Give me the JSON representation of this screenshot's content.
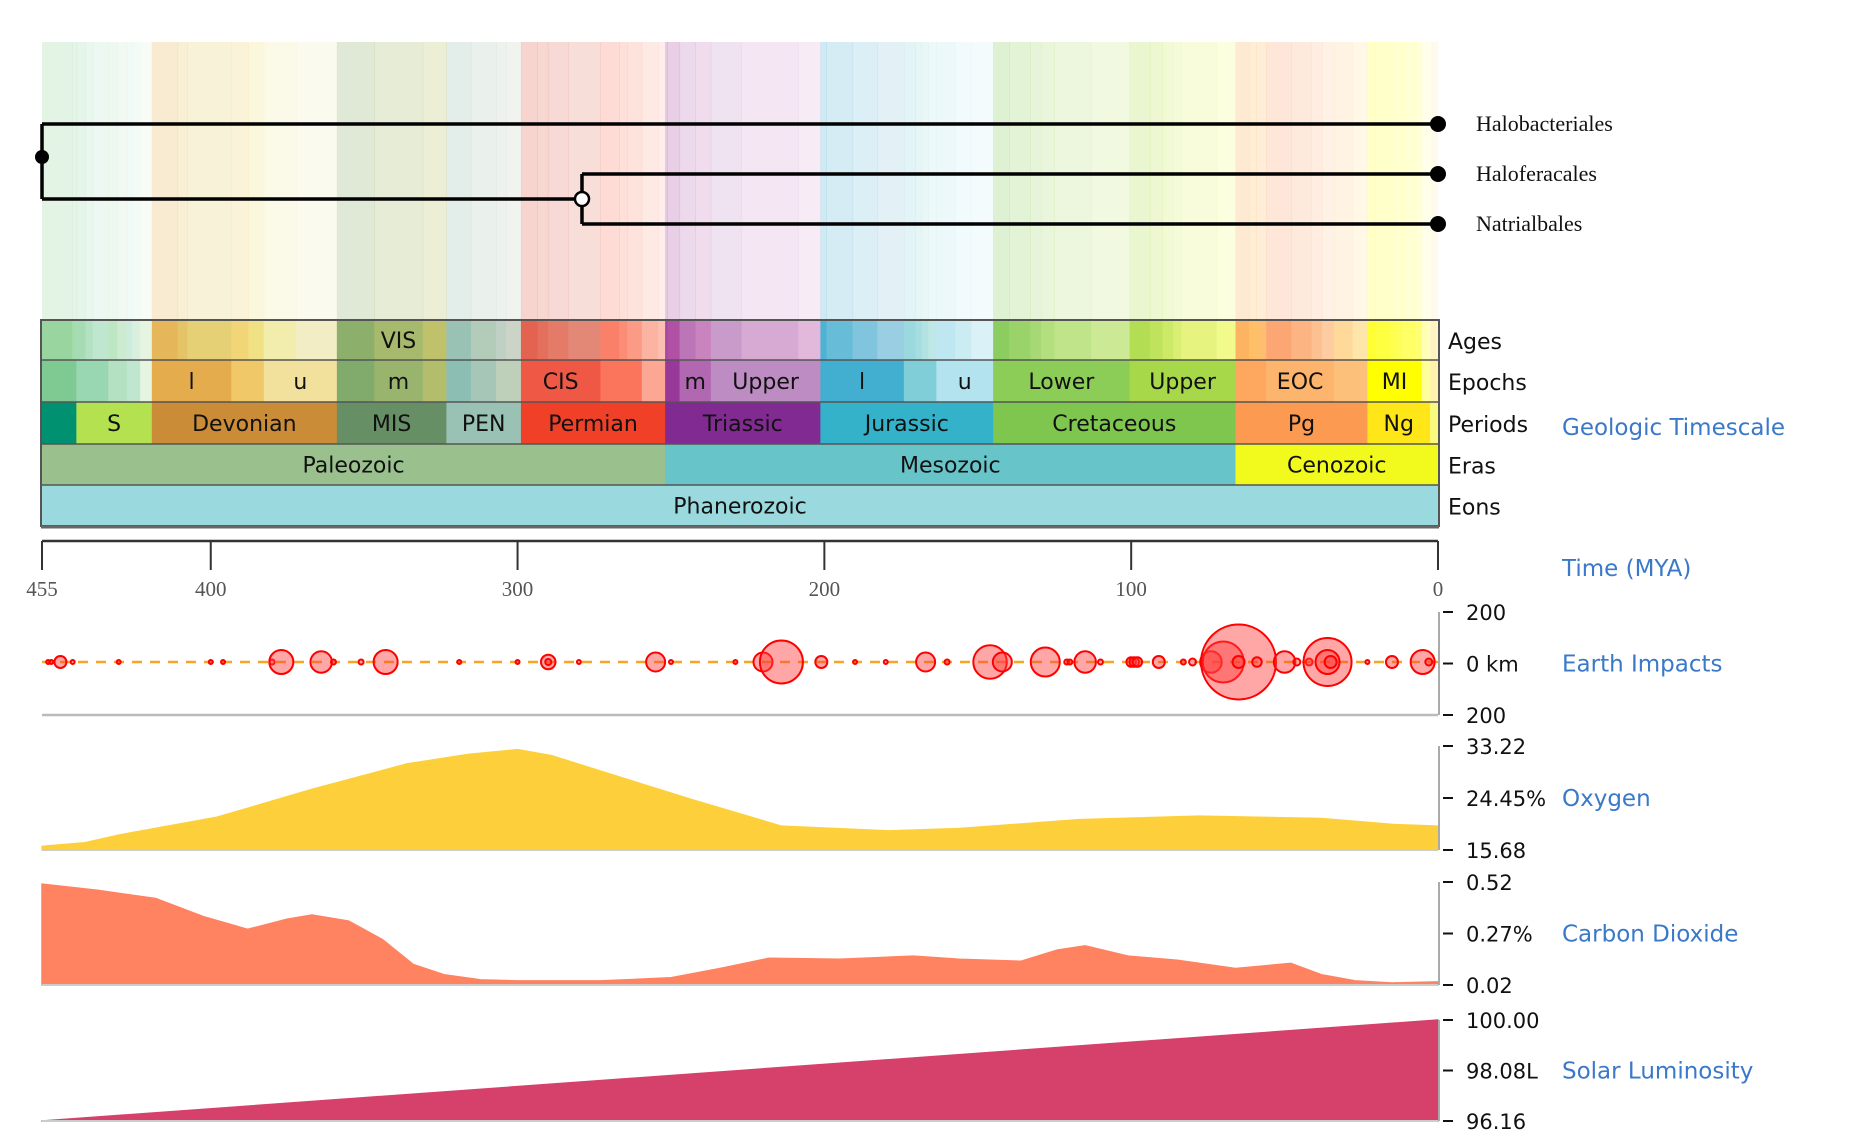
{
  "tree": {
    "leaves": [
      "Halobacteriales",
      "Haloferacales",
      "Natrialbales"
    ],
    "root_time_mya": 455,
    "internal_node_time_mya": 279
  },
  "timescale": {
    "title": "Geologic Timescale",
    "row_labels": [
      "Ages",
      "Epochs",
      "Periods",
      "Eras",
      "Eons"
    ],
    "ages": [
      {
        "s": 455,
        "e": 445.2,
        "c": "#99d69f",
        "l": ""
      },
      {
        "s": 445.2,
        "e": 443.8,
        "c": "#a6dbab",
        "l": ""
      },
      {
        "s": 443.8,
        "e": 440.8,
        "c": "#a6dcb5",
        "l": ""
      },
      {
        "s": 440.8,
        "e": 438.5,
        "c": "#b3e1c2",
        "l": ""
      },
      {
        "s": 438.5,
        "e": 433.4,
        "c": "#bfe6cf",
        "l": ""
      },
      {
        "s": 433.4,
        "e": 430.5,
        "c": "#bfe6c3",
        "l": ""
      },
      {
        "s": 430.5,
        "e": 427.4,
        "c": "#ccebd1",
        "l": ""
      },
      {
        "s": 427.4,
        "e": 425.6,
        "c": "#ccecdd",
        "l": ""
      },
      {
        "s": 425.6,
        "e": 423,
        "c": "#d9f0df",
        "l": ""
      },
      {
        "s": 423,
        "e": 419.2,
        "c": "#e6f5e1",
        "l": ""
      },
      {
        "s": 419.2,
        "e": 410.8,
        "c": "#e5b75a",
        "l": ""
      },
      {
        "s": 410.8,
        "e": 407.6,
        "c": "#e5c468",
        "l": ""
      },
      {
        "s": 407.6,
        "e": 393.3,
        "c": "#e5d075",
        "l": ""
      },
      {
        "s": 393.3,
        "e": 387.7,
        "c": "#f1d576",
        "l": ""
      },
      {
        "s": 387.7,
        "e": 382.7,
        "c": "#f1e185",
        "l": ""
      },
      {
        "s": 382.7,
        "e": 372.2,
        "c": "#f2edad",
        "l": ""
      },
      {
        "s": 372.2,
        "e": 358.9,
        "c": "#f2edc5",
        "l": ""
      },
      {
        "s": 358.9,
        "e": 346.7,
        "c": "#8cb06c",
        "l": ""
      },
      {
        "s": 346.7,
        "e": 330.9,
        "c": "#a6b96c",
        "l": "VIS"
      },
      {
        "s": 330.9,
        "e": 323.2,
        "c": "#bfc26b",
        "l": ""
      },
      {
        "s": 323.2,
        "e": 315.2,
        "c": "#99c2b5",
        "l": ""
      },
      {
        "s": 315.2,
        "e": 307,
        "c": "#b3cbb9",
        "l": ""
      },
      {
        "s": 307,
        "e": 303.7,
        "c": "#bfd0c5",
        "l": ""
      },
      {
        "s": 303.7,
        "e": 298.9,
        "c": "#ccd4c7",
        "l": ""
      },
      {
        "s": 298.9,
        "e": 293.5,
        "c": "#e36350",
        "l": ""
      },
      {
        "s": 293.5,
        "e": 290.1,
        "c": "#e36f5c",
        "l": ""
      },
      {
        "s": 290.1,
        "e": 283.5,
        "c": "#e37b68",
        "l": ""
      },
      {
        "s": 283.5,
        "e": 273,
        "c": "#e38776",
        "l": ""
      },
      {
        "s": 273,
        "e": 266.9,
        "c": "#fb8069",
        "l": ""
      },
      {
        "s": 266.9,
        "e": 264.3,
        "c": "#fb8d76",
        "l": ""
      },
      {
        "s": 264.3,
        "e": 259.5,
        "c": "#fb9a85",
        "l": ""
      },
      {
        "s": 259.5,
        "e": 254.1,
        "c": "#fcb4a2",
        "l": ""
      },
      {
        "s": 254.1,
        "e": 251.9,
        "c": "#fcc0b2",
        "l": ""
      },
      {
        "s": 251.9,
        "e": 251.2,
        "c": "#a4469f",
        "l": ""
      },
      {
        "s": 251.2,
        "e": 247.2,
        "c": "#b051a5",
        "l": ""
      },
      {
        "s": 247.2,
        "e": 242,
        "c": "#bc75b7",
        "l": ""
      },
      {
        "s": 242,
        "e": 237,
        "c": "#c983bf",
        "l": ""
      },
      {
        "s": 237,
        "e": 227,
        "c": "#c99bcb",
        "l": ""
      },
      {
        "s": 227,
        "e": 208.5,
        "c": "#d6aad3",
        "l": ""
      },
      {
        "s": 208.5,
        "e": 201.3,
        "c": "#e3b9db",
        "l": ""
      },
      {
        "s": 201.3,
        "e": 199.3,
        "c": "#4eb3d3",
        "l": ""
      },
      {
        "s": 199.3,
        "e": 190.8,
        "c": "#67bcd8",
        "l": ""
      },
      {
        "s": 190.8,
        "e": 182.7,
        "c": "#80c5dd",
        "l": ""
      },
      {
        "s": 182.7,
        "e": 174.1,
        "c": "#99cee3",
        "l": ""
      },
      {
        "s": 174.1,
        "e": 170.3,
        "c": "#9ad9dd",
        "l": ""
      },
      {
        "s": 170.3,
        "e": 168.3,
        "c": "#a6dde0",
        "l": ""
      },
      {
        "s": 168.3,
        "e": 166.1,
        "c": "#b3e2e3",
        "l": ""
      },
      {
        "s": 166.1,
        "e": 163.5,
        "c": "#bfe7e5",
        "l": ""
      },
      {
        "s": 163.5,
        "e": 157.3,
        "c": "#bfe7f1",
        "l": ""
      },
      {
        "s": 157.3,
        "e": 152.1,
        "c": "#ccecf4",
        "l": ""
      },
      {
        "s": 152.1,
        "e": 145,
        "c": "#d9f1f7",
        "l": ""
      },
      {
        "s": 145,
        "e": 139.8,
        "c": "#8ccd60",
        "l": ""
      },
      {
        "s": 139.8,
        "e": 132.9,
        "c": "#99d36a",
        "l": ""
      },
      {
        "s": 132.9,
        "e": 129.4,
        "c": "#a6d975",
        "l": ""
      },
      {
        "s": 129.4,
        "e": 125,
        "c": "#b3df7f",
        "l": ""
      },
      {
        "s": 125,
        "e": 113,
        "c": "#bfe48a",
        "l": ""
      },
      {
        "s": 113,
        "e": 100.5,
        "c": "#cce995",
        "l": ""
      },
      {
        "s": 100.5,
        "e": 93.9,
        "c": "#b3de53",
        "l": ""
      },
      {
        "s": 93.9,
        "e": 89.8,
        "c": "#bfe35d",
        "l": ""
      },
      {
        "s": 89.8,
        "e": 86.3,
        "c": "#cce968",
        "l": ""
      },
      {
        "s": 86.3,
        "e": 83.6,
        "c": "#d9ef74",
        "l": ""
      },
      {
        "s": 83.6,
        "e": 72.1,
        "c": "#e6f47f",
        "l": ""
      },
      {
        "s": 72.1,
        "e": 66,
        "c": "#f2fa8c",
        "l": ""
      },
      {
        "s": 66,
        "e": 61.6,
        "c": "#fdb462",
        "l": ""
      },
      {
        "s": 61.6,
        "e": 59.2,
        "c": "#febf65",
        "l": ""
      },
      {
        "s": 59.2,
        "e": 56,
        "c": "#fdbf6f",
        "l": ""
      },
      {
        "s": 56,
        "e": 47.8,
        "c": "#fca773",
        "l": ""
      },
      {
        "s": 47.8,
        "e": 41.2,
        "c": "#fcb482",
        "l": ""
      },
      {
        "s": 41.2,
        "e": 37.8,
        "c": "#fdc091",
        "l": ""
      },
      {
        "s": 37.8,
        "e": 33.9,
        "c": "#fdcda1",
        "l": ""
      },
      {
        "s": 33.9,
        "e": 27.82,
        "c": "#fed99a",
        "l": ""
      },
      {
        "s": 27.82,
        "e": 23.03,
        "c": "#fee6aa",
        "l": ""
      },
      {
        "s": 23.03,
        "e": 20.44,
        "c": "#ffff33",
        "l": ""
      },
      {
        "s": 20.44,
        "e": 15.97,
        "c": "#ffff41",
        "l": ""
      },
      {
        "s": 15.97,
        "e": 13.82,
        "c": "#ffff4d",
        "l": ""
      },
      {
        "s": 13.82,
        "e": 11.63,
        "c": "#ffff59",
        "l": ""
      },
      {
        "s": 11.63,
        "e": 7.25,
        "c": "#ffff66",
        "l": ""
      },
      {
        "s": 7.25,
        "e": 5.33,
        "c": "#ffff73",
        "l": ""
      },
      {
        "s": 5.33,
        "e": 3.6,
        "c": "#ffffb3",
        "l": ""
      },
      {
        "s": 3.6,
        "e": 2.58,
        "c": "#ffffbf",
        "l": ""
      },
      {
        "s": 2.58,
        "e": 1.8,
        "c": "#fff2c7",
        "l": ""
      },
      {
        "s": 1.8,
        "e": 0.77,
        "c": "#fff2ba",
        "l": ""
      },
      {
        "s": 0.77,
        "e": 0,
        "c": "#fff2d3",
        "l": ""
      }
    ],
    "epochs": [
      {
        "s": 455,
        "e": 443.8,
        "c": "#7fca93",
        "l": ""
      },
      {
        "s": 443.8,
        "e": 433.4,
        "c": "#99d7b3",
        "l": ""
      },
      {
        "s": 433.4,
        "e": 427.4,
        "c": "#b3e1c2",
        "l": ""
      },
      {
        "s": 427.4,
        "e": 423,
        "c": "#bfe6cf",
        "l": ""
      },
      {
        "s": 423,
        "e": 419.2,
        "c": "#e6f5e1",
        "l": ""
      },
      {
        "s": 419.2,
        "e": 393.3,
        "c": "#e5ac4d",
        "l": "l"
      },
      {
        "s": 393.3,
        "e": 382.7,
        "c": "#f1c868",
        "l": ""
      },
      {
        "s": 382.7,
        "e": 358.9,
        "c": "#f1e19d",
        "l": "u"
      },
      {
        "s": 358.9,
        "e": 346.7,
        "c": "#80ab6c",
        "l": ""
      },
      {
        "s": 346.7,
        "e": 330.9,
        "c": "#99b46c",
        "l": "m"
      },
      {
        "s": 330.9,
        "e": 323.2,
        "c": "#b3be6c",
        "l": ""
      },
      {
        "s": 323.2,
        "e": 315.2,
        "c": "#8cbeb4",
        "l": ""
      },
      {
        "s": 315.2,
        "e": 307,
        "c": "#a6c7b7",
        "l": ""
      },
      {
        "s": 307,
        "e": 298.9,
        "c": "#bfd0ba",
        "l": ""
      },
      {
        "s": 298.9,
        "e": 273,
        "c": "#ef5845",
        "l": "CIS"
      },
      {
        "s": 273,
        "e": 259.5,
        "c": "#fb745c",
        "l": ""
      },
      {
        "s": 259.5,
        "e": 251.9,
        "c": "#fba794",
        "l": ""
      },
      {
        "s": 251.9,
        "e": 247.2,
        "c": "#983999",
        "l": ""
      },
      {
        "s": 247.2,
        "e": 237,
        "c": "#b168b1",
        "l": "m"
      },
      {
        "s": 237,
        "e": 201.3,
        "c": "#bd8cc3",
        "l": "Upper"
      },
      {
        "s": 201.3,
        "e": 174.1,
        "c": "#42aed0",
        "l": "l"
      },
      {
        "s": 174.1,
        "e": 163.5,
        "c": "#80cfd8",
        "l": ""
      },
      {
        "s": 163.5,
        "e": 145,
        "c": "#b3e3ee",
        "l": "u"
      },
      {
        "s": 145,
        "e": 100.5,
        "c": "#8ccd57",
        "l": "Lower"
      },
      {
        "s": 100.5,
        "e": 66,
        "c": "#a6d84a",
        "l": "Upper"
      },
      {
        "s": 66,
        "e": 56,
        "c": "#fda75f",
        "l": ""
      },
      {
        "s": 56,
        "e": 33.9,
        "c": "#fdb46c",
        "l": "EOC"
      },
      {
        "s": 33.9,
        "e": 23,
        "c": "#fdc07a",
        "l": ""
      },
      {
        "s": 23,
        "e": 5.33,
        "c": "#ffff00",
        "l": "MI"
      },
      {
        "s": 5.33,
        "e": 2.58,
        "c": "#ffff99",
        "l": ""
      },
      {
        "s": 2.58,
        "e": 0,
        "c": "#fff2ae",
        "l": ""
      }
    ],
    "periods": [
      {
        "s": 455,
        "e": 443.8,
        "c": "#009270",
        "l": ""
      },
      {
        "s": 443.8,
        "e": 419.2,
        "c": "#b3e150",
        "l": "S"
      },
      {
        "s": 419.2,
        "e": 358.9,
        "c": "#cb8c37",
        "l": "Devonian"
      },
      {
        "s": 358.9,
        "e": 323.2,
        "c": "#678f66",
        "l": "MIS"
      },
      {
        "s": 323.2,
        "e": 298.9,
        "c": "#99c2b5",
        "l": "PEN"
      },
      {
        "s": 298.9,
        "e": 251.9,
        "c": "#f04028",
        "l": "Permian"
      },
      {
        "s": 251.9,
        "e": 201.3,
        "c": "#812b92",
        "l": "Triassic"
      },
      {
        "s": 201.3,
        "e": 145,
        "c": "#34b2c9",
        "l": "Jurassic"
      },
      {
        "s": 145,
        "e": 66,
        "c": "#7fc64e",
        "l": "Cretaceous"
      },
      {
        "s": 66,
        "e": 23,
        "c": "#fd9a52",
        "l": "Pg"
      },
      {
        "s": 23,
        "e": 2.58,
        "c": "#ffe619",
        "l": "Ng"
      },
      {
        "s": 2.58,
        "e": 0,
        "c": "#f9f97f",
        "l": ""
      }
    ],
    "eras": [
      {
        "s": 455,
        "e": 251.9,
        "c": "#99c08d",
        "l": "Paleozoic"
      },
      {
        "s": 251.9,
        "e": 66,
        "c": "#67c5ca",
        "l": "Mesozoic"
      },
      {
        "s": 66,
        "e": 0,
        "c": "#f2f91d",
        "l": "Cenozoic"
      }
    ],
    "eons": [
      {
        "s": 455,
        "e": 0,
        "c": "#9ad9dd",
        "l": "Phanerozoic"
      }
    ]
  },
  "chart_data": [
    {
      "type": "axis",
      "title": "Time (MYA)",
      "xlim": [
        455,
        0
      ],
      "ticks": [
        455,
        400,
        300,
        200,
        100,
        0
      ],
      "tick_labels": [
        "455",
        "400",
        "300",
        "200",
        "100",
        "0"
      ]
    },
    {
      "type": "scatter",
      "title": "Earth Impacts",
      "ylabel_ticks": [
        "200",
        "0 km",
        "200"
      ],
      "ylim": [
        -200,
        200
      ],
      "x": [
        453,
        452,
        449,
        445,
        430,
        400,
        396,
        380,
        377,
        364,
        360,
        351,
        343,
        319,
        300,
        290,
        290,
        280,
        255,
        250,
        229,
        220,
        214,
        201,
        190,
        180,
        167,
        160,
        146,
        142,
        128,
        121,
        120,
        115,
        110,
        100,
        99,
        98,
        91,
        83,
        80,
        74,
        70,
        65,
        65,
        59,
        50,
        46,
        42,
        36,
        36,
        35,
        23,
        15,
        5,
        3
      ],
      "diameter_km": [
        5,
        5,
        24,
        7,
        7,
        7,
        7,
        10,
        48,
        43,
        10,
        10,
        48,
        7,
        7,
        29,
        12,
        7,
        38,
        7,
        7,
        38,
        86,
        24,
        7,
        7,
        38,
        10,
        67,
        38,
        58,
        10,
        10,
        43,
        10,
        19,
        19,
        19,
        24,
        10,
        14,
        43,
        82,
        150,
        24,
        19,
        43,
        14,
        14,
        96,
        48,
        24,
        7,
        24,
        48,
        14
      ],
      "color": "#ff0000"
    },
    {
      "type": "area",
      "title": "Oxygen",
      "ylabel_ticks": [
        "33.22",
        "24.45%",
        "15.68"
      ],
      "ylim": [
        15.68,
        33.22
      ],
      "x": [
        455,
        441,
        430,
        398,
        367,
        336,
        316,
        300,
        289,
        265,
        242,
        214,
        179,
        156,
        117,
        78,
        38,
        15,
        0
      ],
      "y": [
        16.3,
        16.9,
        18.2,
        21.2,
        25.9,
        30.2,
        31.8,
        32.6,
        31.6,
        27.7,
        24.0,
        19.7,
        18.9,
        19.3,
        20.8,
        21.4,
        21.0,
        20.0,
        19.7
      ],
      "color": "#fdd03b"
    },
    {
      "type": "area",
      "title": "Carbon Dioxide",
      "ylabel_ticks": [
        "0.52",
        "0.27%",
        "0.02"
      ],
      "ylim": [
        0.02,
        0.52
      ],
      "x": [
        455,
        437,
        418,
        402,
        388,
        375,
        367,
        355,
        344,
        334,
        324,
        312,
        300,
        273,
        250,
        234,
        218,
        195,
        171,
        156,
        136,
        124,
        115,
        101,
        85,
        66,
        48,
        38,
        27,
        15,
        0
      ],
      "y": [
        0.51,
        0.48,
        0.44,
        0.35,
        0.29,
        0.34,
        0.36,
        0.33,
        0.24,
        0.12,
        0.07,
        0.045,
        0.04,
        0.04,
        0.055,
        0.1,
        0.15,
        0.145,
        0.16,
        0.145,
        0.135,
        0.19,
        0.21,
        0.16,
        0.14,
        0.1,
        0.125,
        0.07,
        0.04,
        0.03,
        0.035
      ],
      "color": "#ff8261"
    },
    {
      "type": "area",
      "title": "Solar Luminosity",
      "ylabel_ticks": [
        "100.00",
        "98.08L",
        "96.16"
      ],
      "ylim": [
        96.16,
        100.0
      ],
      "x": [
        455,
        0
      ],
      "y": [
        96.16,
        100.0
      ],
      "color": "#d5416a"
    }
  ],
  "colors": {
    "label_blue": "#3a78c9",
    "impact_line": "#f5a623"
  }
}
